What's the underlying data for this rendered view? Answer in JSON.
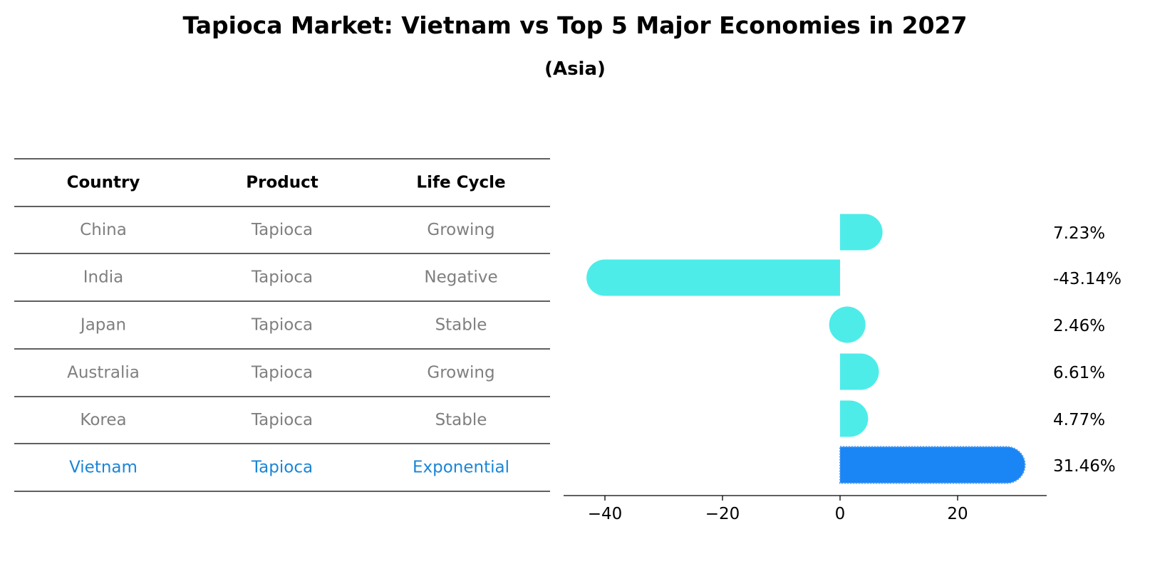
{
  "title": "Tapioca Market: Vietnam vs Top 5 Major Economies in 2027",
  "subtitle": "(Asia)",
  "colors": {
    "bar": "#4DECE9",
    "highlight": "#1A85F5",
    "muted_text": "#7F7F7F",
    "highlight_text": "#1A85D8"
  },
  "table": {
    "headers": [
      "Country",
      "Product",
      "Life Cycle"
    ],
    "rows": [
      {
        "country": "China",
        "product": "Tapioca",
        "life_cycle": "Growing"
      },
      {
        "country": "India",
        "product": "Tapioca",
        "life_cycle": "Negative"
      },
      {
        "country": "Japan",
        "product": "Tapioca",
        "life_cycle": "Stable"
      },
      {
        "country": "Australia",
        "product": "Tapioca",
        "life_cycle": "Growing"
      },
      {
        "country": "Korea",
        "product": "Tapioca",
        "life_cycle": "Stable"
      },
      {
        "country": "Vietnam",
        "product": "Tapioca",
        "life_cycle": "Exponential"
      }
    ],
    "highlight_row": 5
  },
  "chart_data": {
    "type": "bar",
    "orientation": "horizontal",
    "title": "Tapioca Market: Vietnam vs Top 5 Major Economies in 2027",
    "subtitle": "(Asia)",
    "categories": [
      "China",
      "India",
      "Japan",
      "Australia",
      "Korea",
      "Vietnam"
    ],
    "values": [
      7.23,
      -43.14,
      2.46,
      6.61,
      4.77,
      31.46
    ],
    "labels": [
      "7.23%",
      "-43.14%",
      "2.46%",
      "6.61%",
      "4.77%",
      "31.46%"
    ],
    "highlight": "Vietnam",
    "xlim": [
      -47,
      35
    ],
    "xticks": [
      -40,
      -20,
      0,
      20
    ],
    "xtick_labels": [
      "−40",
      "−20",
      "0",
      "20"
    ],
    "xlabel": "",
    "ylabel": "",
    "grid": false
  }
}
